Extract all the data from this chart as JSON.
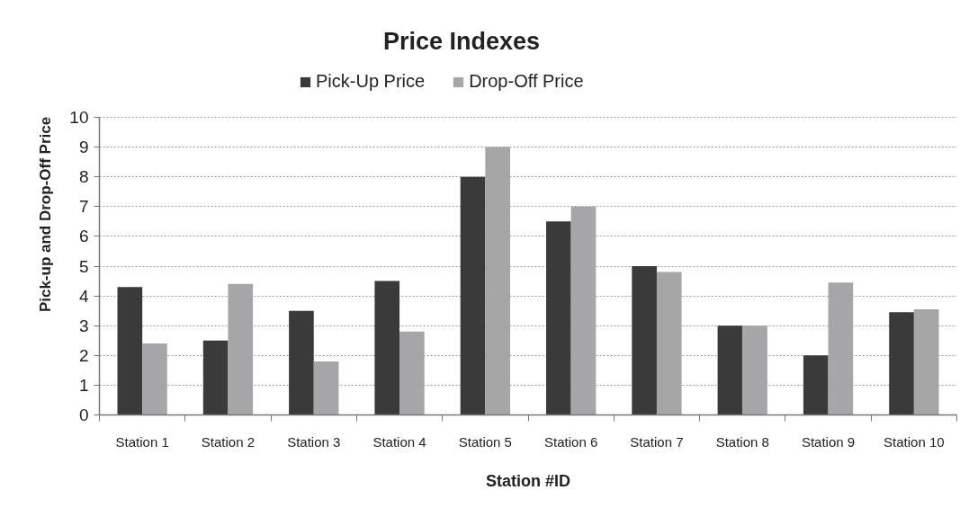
{
  "chart_data": {
    "type": "bar",
    "title": "Price Indexes",
    "xlabel": "Station #ID",
    "ylabel": "Pick-up and Drop-Off Price",
    "categories": [
      "Station 1",
      "Station 2",
      "Station 3",
      "Station 4",
      "Station 5",
      "Station 6",
      "Station 7",
      "Station 8",
      "Station 9",
      "Station 10"
    ],
    "series": [
      {
        "name": "Pick-Up Price",
        "color": "#3a3a3a",
        "values": [
          4.3,
          2.5,
          3.5,
          4.5,
          8,
          6.5,
          5,
          3,
          2,
          3.45
        ]
      },
      {
        "name": "Drop-Off Price",
        "color": "#a6a6a8",
        "values": [
          2.4,
          4.4,
          1.8,
          2.8,
          9,
          7,
          4.8,
          3,
          4.45,
          3.55
        ]
      }
    ],
    "ylim": [
      0,
      10
    ],
    "yticks": [
      0,
      1,
      2,
      3,
      4,
      5,
      6,
      7,
      8,
      9,
      10
    ],
    "grid": "y",
    "legend": "top"
  }
}
